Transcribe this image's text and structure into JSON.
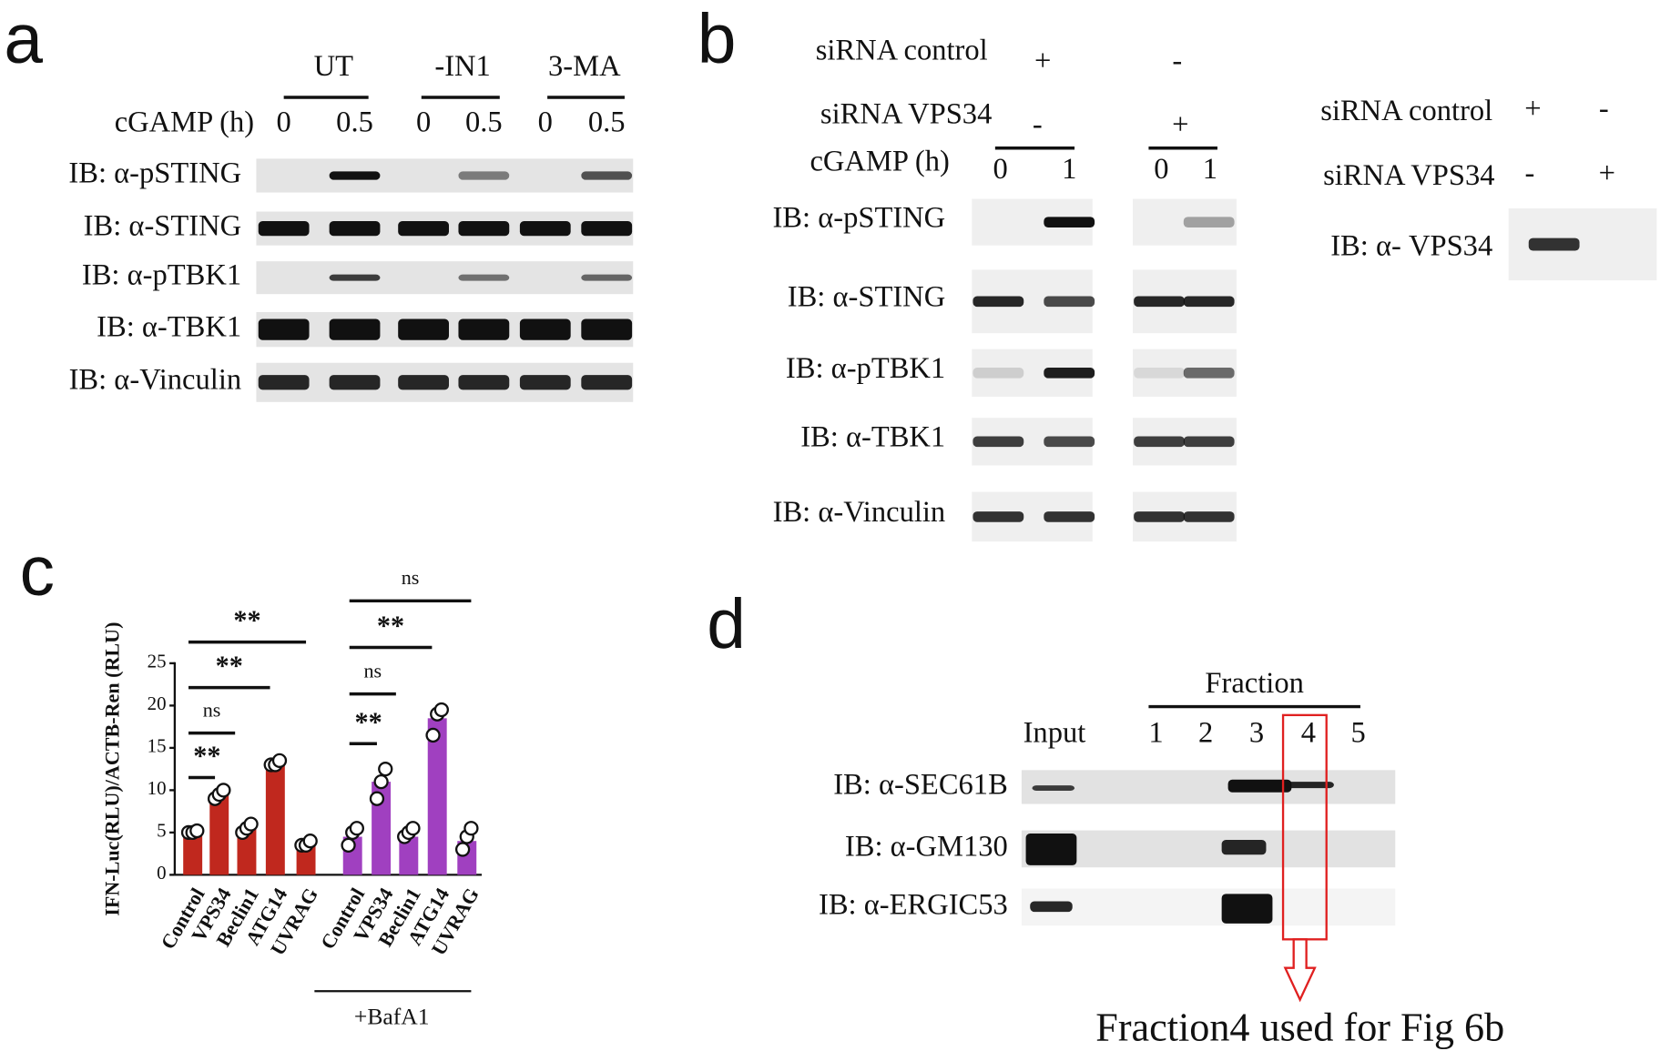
{
  "panel_a": {
    "letter": "a",
    "groups": [
      "UT",
      "-IN1",
      "3-MA"
    ],
    "time_label": "cGAMP (h)",
    "times": [
      "0",
      "0.5",
      "0",
      "0.5",
      "0",
      "0.5"
    ],
    "rows": [
      "IB: α-pSTING",
      "IB: α-STING",
      "IB: α-pTBK1",
      "IB: α-TBK1",
      "IB: α-Vinculin"
    ]
  },
  "panel_b": {
    "letter": "b",
    "conditions": [
      {
        "label": "siRNA control",
        "marks": [
          "+",
          "-"
        ]
      },
      {
        "label": "siRNA VPS34",
        "marks": [
          "-",
          "+"
        ]
      }
    ],
    "time_label": "cGAMP (h)",
    "times": [
      "0",
      "1",
      "0",
      "1"
    ],
    "rows": [
      "IB: α-pSTING",
      "IB: α-STING",
      "IB: α-pTBK1",
      "IB: α-TBK1",
      "IB: α-Vinculin"
    ],
    "knockdown": {
      "conditions": [
        {
          "label": "siRNA control",
          "marks": [
            "+",
            "-"
          ]
        },
        {
          "label": "siRNA VPS34",
          "marks": [
            "-",
            "+"
          ]
        }
      ],
      "row": "IB: α- VPS34"
    }
  },
  "chart_data": {
    "type": "bar",
    "letter": "c",
    "y_label": "IFN-Luc(RLU)/ACTB-Ren (RLU)",
    "categories": [
      "Control",
      "VPS34",
      "Beclin1",
      "ATG14",
      "UVRAG"
    ],
    "series": [
      {
        "color": "#c0281e",
        "values": [
          5,
          9.5,
          5.5,
          13,
          3.5
        ],
        "points": [
          [
            5,
            5,
            5.2
          ],
          [
            9,
            9.5,
            10
          ],
          [
            5,
            5.5,
            6
          ],
          [
            13,
            13,
            13.5
          ],
          [
            3.5,
            3.5,
            4
          ]
        ]
      },
      {
        "color": "#a040c0",
        "group_label": "+BafA1",
        "values": [
          4.5,
          11,
          4.5,
          18.5,
          4
        ],
        "points": [
          [
            3.5,
            5,
            5.5
          ],
          [
            9,
            11,
            12.5
          ],
          [
            4.5,
            5,
            5.5
          ],
          [
            16.5,
            19,
            19.5
          ],
          [
            3,
            4.5,
            5.5
          ]
        ]
      }
    ],
    "ylim": [
      0,
      25
    ],
    "yticks": [
      0,
      5,
      10,
      15,
      20,
      25
    ],
    "annotations": [
      "**",
      "**",
      "ns",
      "**",
      "ns",
      "**",
      "ns",
      "**"
    ]
  },
  "panel_d": {
    "letter": "d",
    "header": "Fraction",
    "lanes": [
      "Input",
      "1",
      "2",
      "3",
      "4",
      "5"
    ],
    "rows": [
      "IB: α-SEC61B",
      "IB: α-GM130",
      "IB: α-ERGIC53"
    ],
    "note": "Fraction4 used for Fig 6b"
  }
}
